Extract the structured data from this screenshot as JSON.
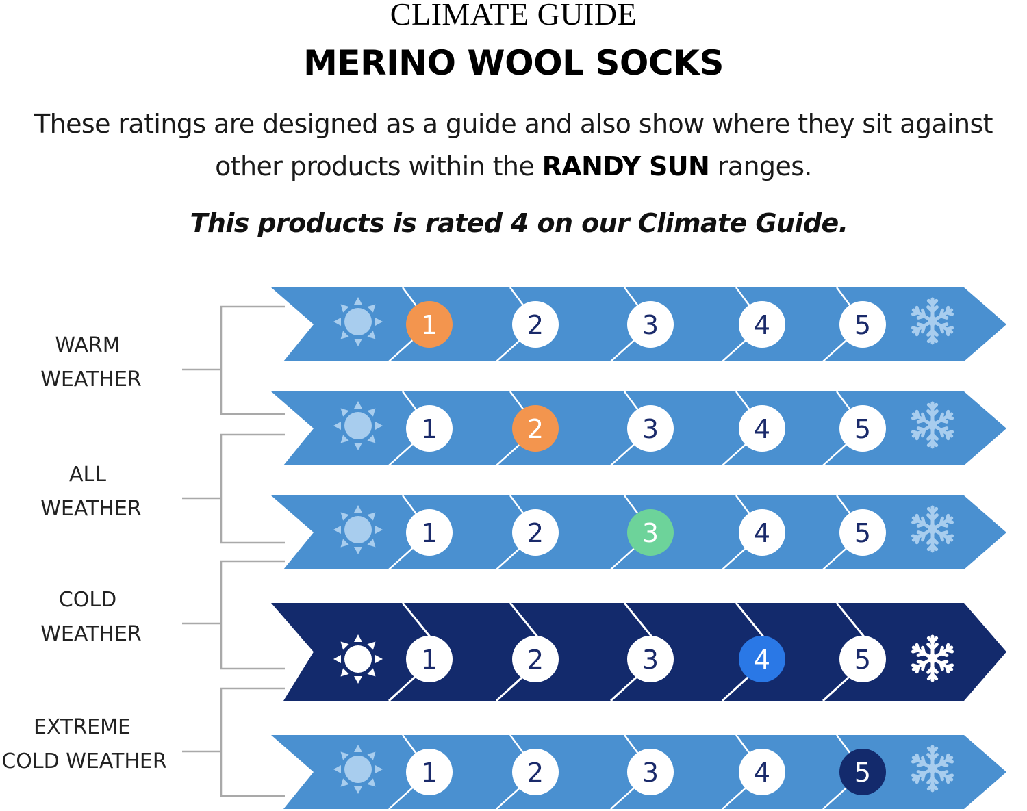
{
  "header": {
    "kicker": "CLIMATE GUIDE",
    "title": "MERINO WOOL SOCKS",
    "intro_line1": "These ratings are designed as a guide and also show where they sit against",
    "intro_line2_before": "other products within the ",
    "intro_brand": "RANDY SUN",
    "intro_line2_after": " ranges.",
    "rating_note": "This products is rated 4 on our Climate Guide."
  },
  "colors": {
    "light_band": "#4a90d0",
    "dark_band": "#132a6c",
    "circle": "#ffffff",
    "number": "#1a2a6a",
    "connector": "#a9a9a9",
    "icon_light": "#a8cdee"
  },
  "categories": [
    {
      "line1": "WARM",
      "line2": "WEATHER"
    },
    {
      "line1": "ALL",
      "line2": "WEATHER"
    },
    {
      "line1": "COLD",
      "line2": "WEATHER"
    },
    {
      "line1": "EXTREME",
      "line2": "COLD WEATHER"
    }
  ],
  "scale": [
    {
      "highlight": 1,
      "highlight_color": "#f3954e",
      "emphasized": false
    },
    {
      "highlight": 2,
      "highlight_color": "#f3954e",
      "emphasized": false
    },
    {
      "highlight": 3,
      "highlight_color": "#6dd39a",
      "emphasized": false
    },
    {
      "highlight": 4,
      "highlight_color": "#2a78e6",
      "emphasized": true
    },
    {
      "highlight": 5,
      "highlight_color": "#132a6c",
      "emphasized": false
    }
  ],
  "numbers": [
    "1",
    "2",
    "3",
    "4",
    "5"
  ],
  "icons": {
    "start": "sun-icon",
    "end": "snowflake-icon"
  }
}
